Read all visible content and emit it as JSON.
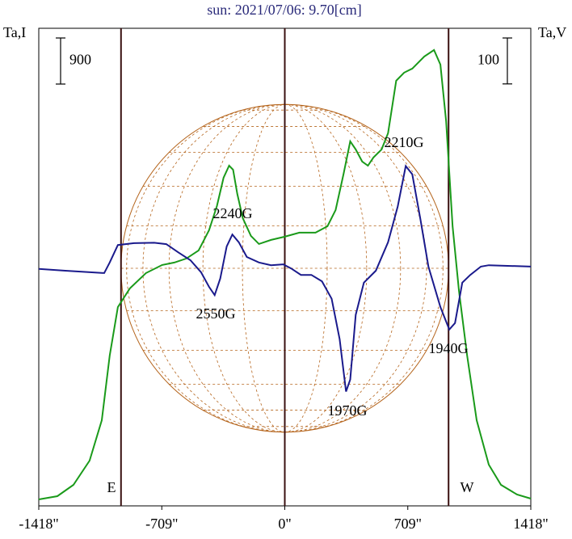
{
  "chart_data": {
    "type": "line",
    "title": "sun: 2021/07/06: 9.70[cm]",
    "y_label": "Ta,I",
    "y2_label": "Ta,V",
    "xlim": [
      -1418,
      1418
    ],
    "xticks": [
      {
        "value": -1418,
        "label": "-1418\""
      },
      {
        "value": -709,
        "label": "-709\""
      },
      {
        "value": 0,
        "label": "0\""
      },
      {
        "value": 709,
        "label": "709\""
      },
      {
        "value": 1418,
        "label": "1418\""
      }
    ],
    "ylim": [
      0,
      9330
    ],
    "y2lim": [
      -520,
      520
    ],
    "vlines": [
      -944,
      0,
      944
    ],
    "limb_labels": [
      "E",
      "W"
    ],
    "annotations": [
      "2240G",
      "2550G",
      "1970G",
      "2210G",
      "1940G"
    ],
    "series": [
      {
        "name": "Ta,I",
        "color": "#1a9a1a",
        "axis": "y",
        "scale_bar": 900,
        "x": [
          -1418,
          -1311,
          -1218,
          -1125,
          -1055,
          -1009,
          -962,
          -893,
          -800,
          -707,
          -637,
          -567,
          -497,
          -437,
          -391,
          -353,
          -321,
          -298,
          -274,
          -242,
          -195,
          -149,
          -79,
          0,
          84,
          177,
          246,
          293,
          339,
          377,
          409,
          446,
          479,
          511,
          558,
          595,
          642,
          688,
          735,
          804,
          860,
          897,
          930,
          967,
          1004,
          1051,
          1106,
          1176,
          1246,
          1339,
          1418
        ],
        "values": [
          126,
          190,
          410,
          884,
          1674,
          2937,
          3884,
          4248,
          4548,
          4706,
          4754,
          4832,
          4990,
          5384,
          5858,
          6410,
          6647,
          6568,
          6095,
          5621,
          5274,
          5116,
          5195,
          5258,
          5337,
          5337,
          5463,
          5779,
          6489,
          7121,
          6963,
          6726,
          6647,
          6805,
          6963,
          7279,
          8305,
          8463,
          8542,
          8779,
          8906,
          8621,
          7516,
          5463,
          4200,
          2937,
          1674,
          805,
          410,
          221,
          142
        ]
      },
      {
        "name": "Ta,V",
        "color": "#1a1a8c",
        "axis": "y2",
        "scale_bar": 100,
        "x": [
          -1418,
          -1265,
          -1041,
          -1009,
          -962,
          -869,
          -753,
          -683,
          -614,
          -544,
          -483,
          -437,
          -404,
          -372,
          -335,
          -302,
          -265,
          -219,
          -149,
          -79,
          -9,
          37,
          93,
          153,
          214,
          270,
          316,
          353,
          377,
          409,
          456,
          525,
          595,
          651,
          697,
          735,
          781,
          828,
          897,
          948,
          981,
          1023,
          1069,
          1130,
          1176,
          1418
        ],
        "values": [
          -4,
          -8,
          -13,
          10,
          48,
          52,
          53,
          50,
          32,
          15,
          -11,
          -43,
          -61,
          -25,
          45,
          71,
          54,
          22,
          10,
          4,
          6,
          -3,
          -17,
          -17,
          -31,
          -69,
          -157,
          -271,
          -245,
          -104,
          -34,
          -8,
          54,
          132,
          220,
          202,
          106,
          1,
          -87,
          -136,
          -122,
          -34,
          -17,
          1,
          4,
          1
        ]
      }
    ]
  }
}
